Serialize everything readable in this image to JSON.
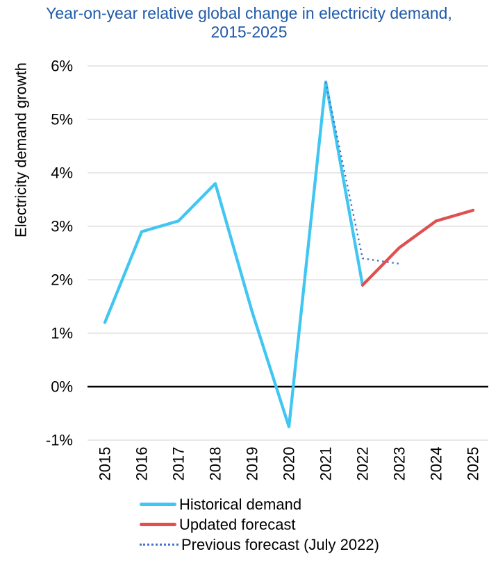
{
  "title": {
    "line1": "Year-on-year relative global change in electricity demand,",
    "line2": "2015-2025"
  },
  "colors": {
    "title_text": "#1F5AA9",
    "axis_text": "#000000",
    "gridline": "#D9D9D9",
    "zero_line": "#000000",
    "historical": "#41C6F1",
    "updated_forecast": "#DF5050",
    "previous_forecast": "#4472C4"
  },
  "chart_data": {
    "type": "line",
    "title": "Year-on-year relative global change in electricity demand, 2015-2025",
    "xlabel": "",
    "ylabel": "Electricity demand growth",
    "ylim": [
      -1,
      6
    ],
    "x_range": [
      2015,
      2025
    ],
    "grid": "horizontal",
    "zero_line": true,
    "legend_position": "bottom-left",
    "x_ticks": [
      "2015",
      "2016",
      "2017",
      "2018",
      "2019",
      "2020",
      "2021",
      "2022",
      "2023",
      "2024",
      "2025"
    ],
    "y_ticks": [
      6,
      5,
      4,
      3,
      2,
      1,
      0,
      -1
    ],
    "y_tick_labels": [
      "6%",
      "5%",
      "4%",
      "3%",
      "2%",
      "1%",
      "0%",
      "-1%"
    ],
    "series": [
      {
        "name": "Historical demand",
        "slug": "historical-demand",
        "color": "#41C6F1",
        "style": "solid",
        "x": [
          2015,
          2016,
          2017,
          2018,
          2019,
          2020,
          2021,
          2022
        ],
        "values": [
          1.2,
          2.9,
          3.1,
          3.8,
          1.4,
          -0.75,
          5.7,
          1.9
        ]
      },
      {
        "name": "Updated forecast",
        "slug": "updated-forecast",
        "color": "#DF5050",
        "style": "solid",
        "x": [
          2022,
          2023,
          2024,
          2025
        ],
        "values": [
          1.9,
          2.6,
          3.1,
          3.3
        ]
      },
      {
        "name": "Previous forecast (July 2022)",
        "slug": "previous-forecast-july-2022",
        "color": "#4472C4",
        "style": "dotted",
        "x": [
          2021,
          2022,
          2023
        ],
        "values": [
          5.7,
          2.4,
          2.3
        ]
      }
    ]
  }
}
